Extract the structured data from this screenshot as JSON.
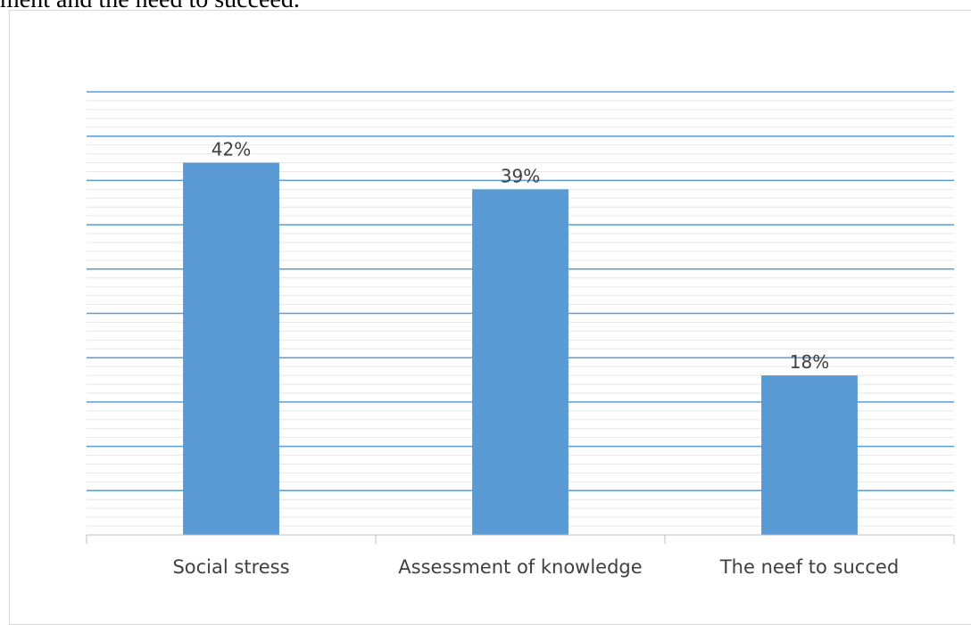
{
  "caption_fragment": "ment and the need to succeed.",
  "chart_data": {
    "type": "bar",
    "categories": [
      "Social stress",
      "Assessment of knowledge",
      "The neef to succed"
    ],
    "values": [
      42,
      39,
      18
    ],
    "data_labels": [
      "42%",
      "39%",
      "18%"
    ],
    "title": "",
    "xlabel": "",
    "ylabel": "",
    "ylim": [
      0,
      50
    ],
    "y_axis_visible": false,
    "grid": true,
    "legend": "none",
    "colors": {
      "bar": "#5b9bd5",
      "major_grid": "#5b9bd5",
      "minor_grid": "#e6e6e6",
      "axis": "#bfbfbf",
      "text": "#404040"
    }
  }
}
